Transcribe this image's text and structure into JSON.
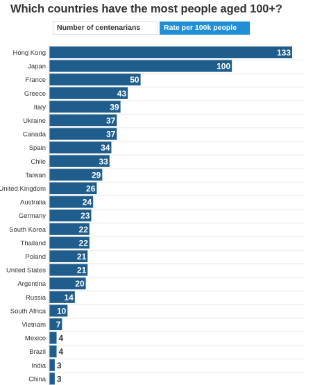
{
  "title": "Which countries have the most people aged 100+?",
  "toggles": [
    {
      "label": "Number of centenarians",
      "active": false
    },
    {
      "label": "Rate per 100k people",
      "active": true
    }
  ],
  "colors": {
    "bar": "#1f5d8c",
    "toggle_active": "#1f8fd8",
    "gridline": "#e6e6e6",
    "value_inside": "#ffffff",
    "value_outside": "#333333"
  },
  "chart_data": {
    "type": "bar",
    "orientation": "horizontal",
    "title": "Which countries have the most people aged 100+?",
    "categories": [
      "Hong Kong",
      "Japan",
      "France",
      "Greece",
      "Italy",
      "Ukraine",
      "Canada",
      "Spain",
      "Chile",
      "Taiwan",
      "United Kingdom",
      "Australia",
      "Germany",
      "South Korea",
      "Thailand",
      "Poland",
      "United States",
      "Argentina",
      "Russia",
      "South Africa",
      "Vietnam",
      "Mexico",
      "Brazil",
      "India",
      "China"
    ],
    "values": [
      133,
      100,
      50,
      43,
      39,
      37,
      37,
      34,
      33,
      29,
      26,
      24,
      23,
      22,
      22,
      21,
      21,
      20,
      14,
      10,
      7,
      4,
      4,
      3,
      3
    ],
    "xlim": [
      0,
      133
    ],
    "grid": true,
    "data_labels": true
  }
}
